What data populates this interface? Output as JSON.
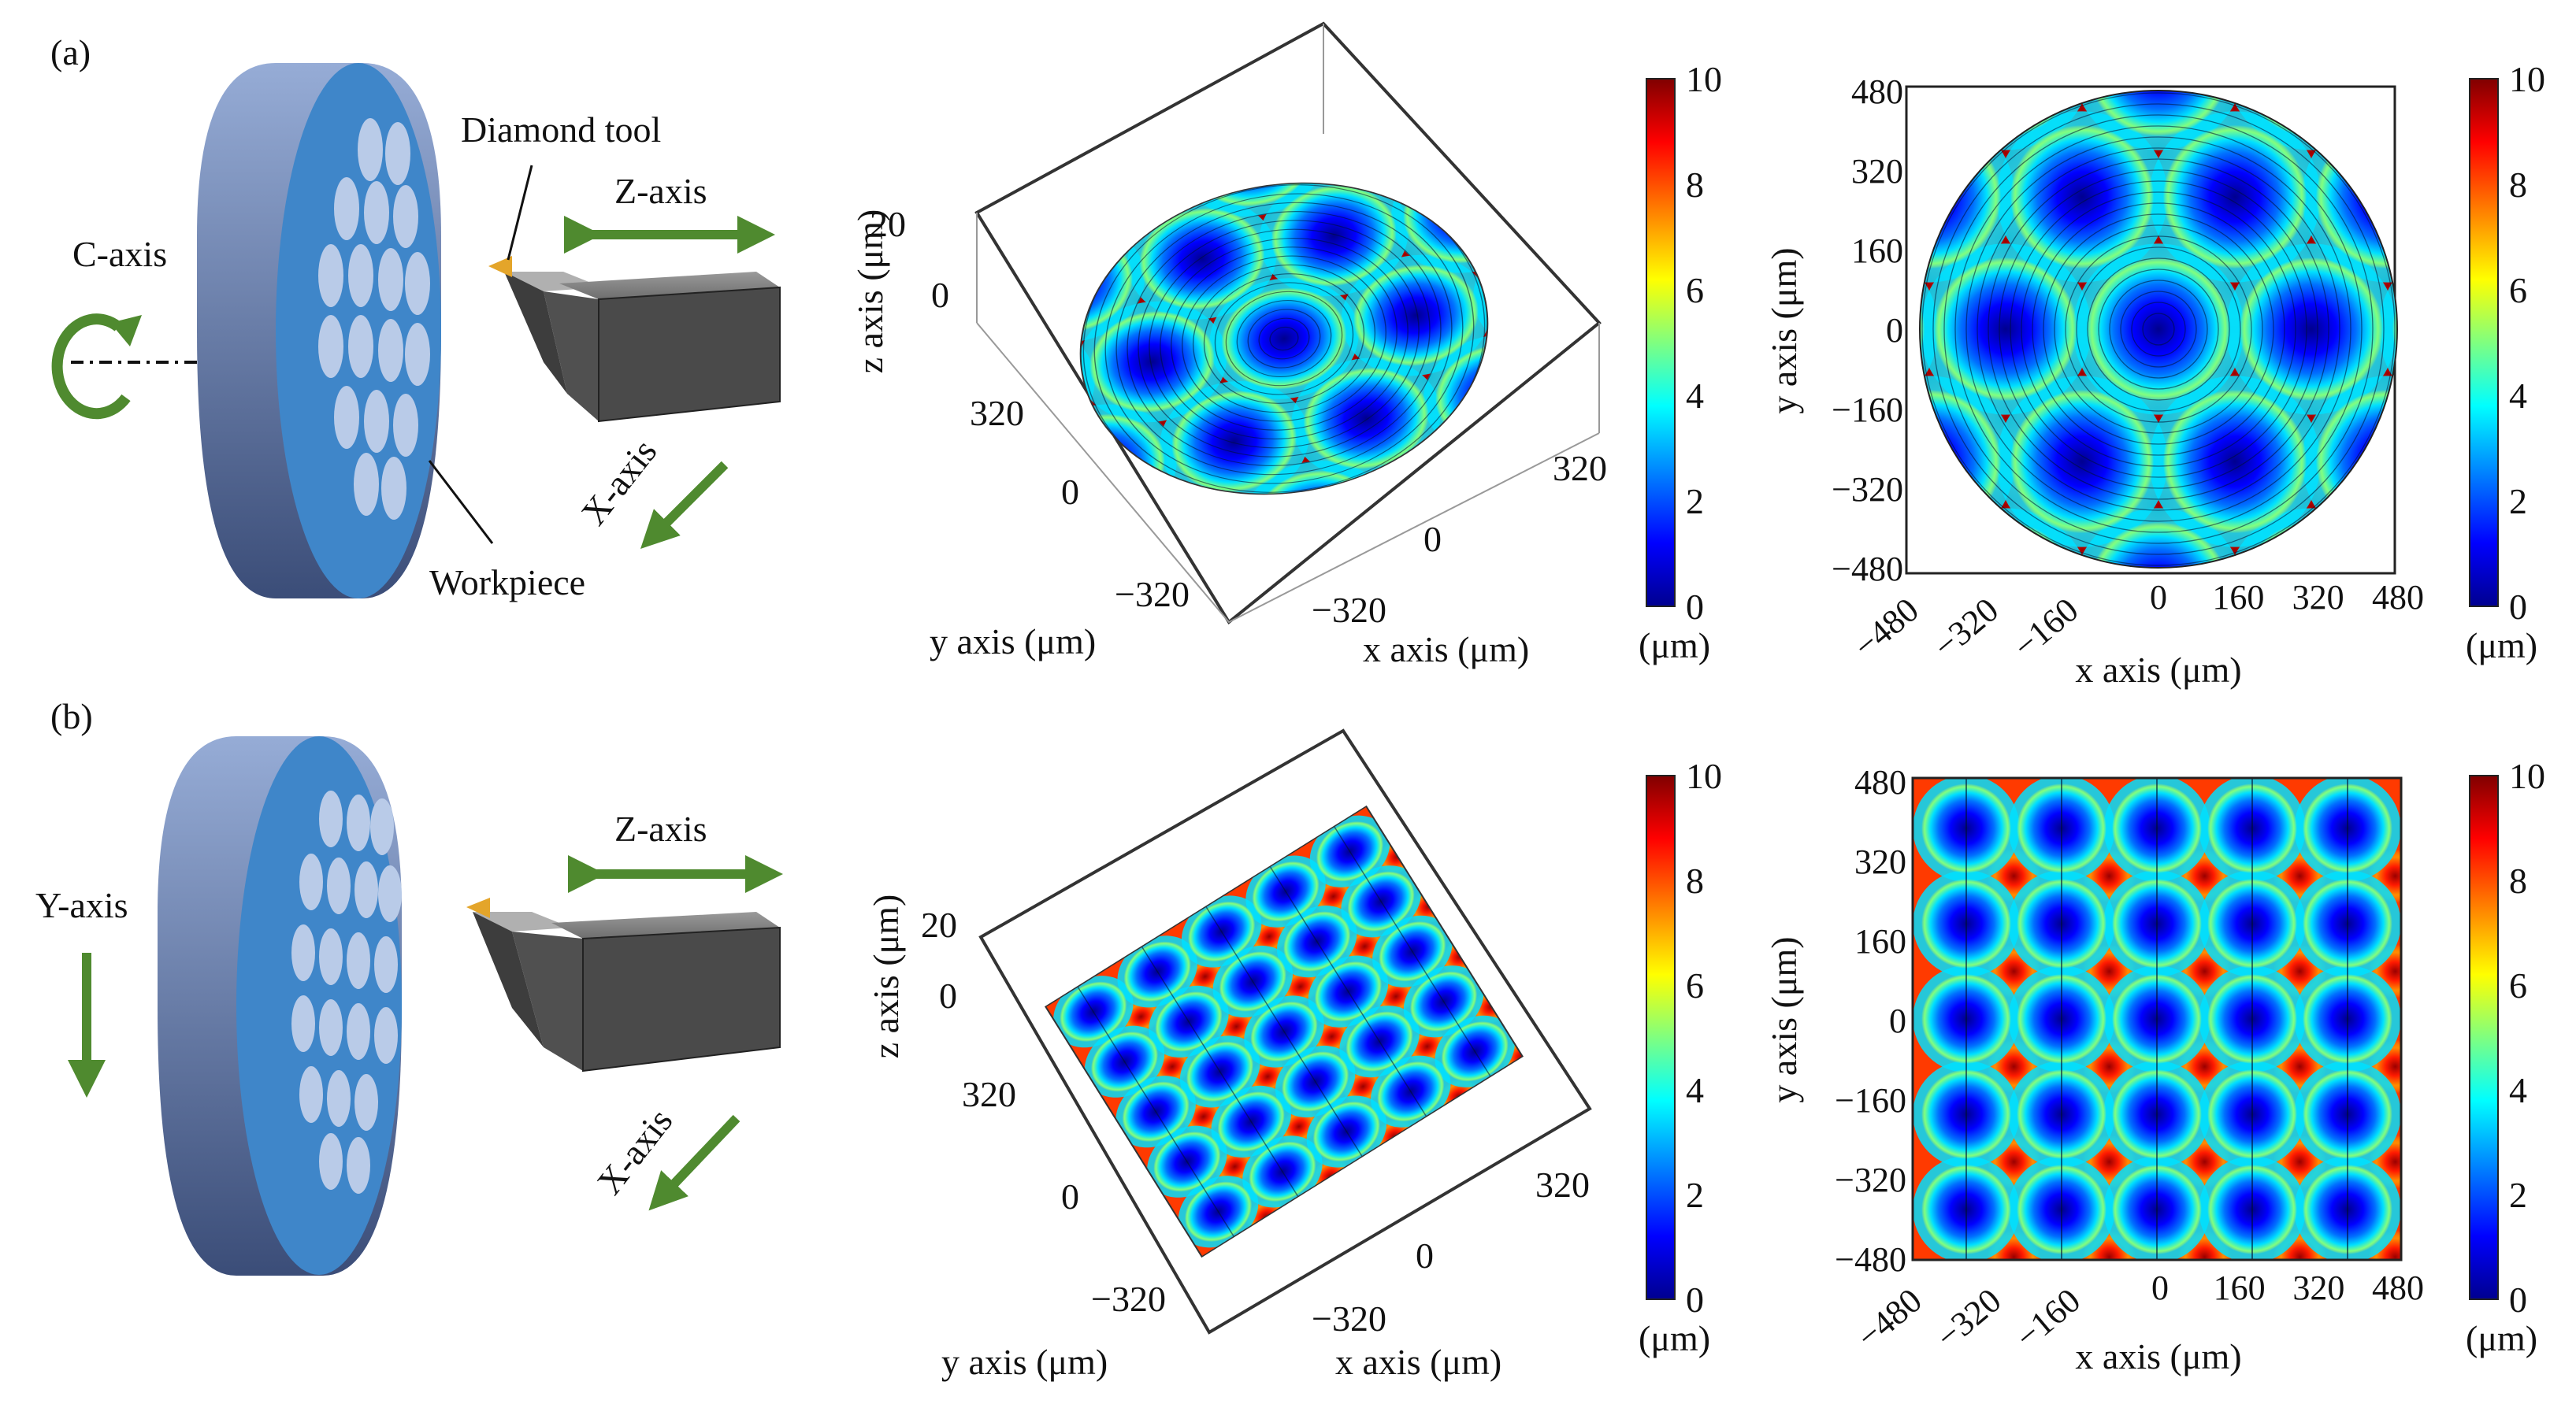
{
  "colors": {
    "arrow": "#4f8a2f",
    "disk_top": "#8fa8d4",
    "disk_bottom": "#3c4f7a",
    "disk_face": "#3f86c9",
    "lens": "#b9cbe8",
    "tool": "#555555",
    "tool_tip": "#e4a52a",
    "colormap": [
      "#00008f",
      "#0000ff",
      "#00ffff",
      "#ffff00",
      "#ff0000",
      "#800000"
    ]
  },
  "panels": [
    {
      "label": "(a)",
      "schematic": {
        "tool_label": "Diamond tool",
        "workpiece_label": "Workpiece",
        "rotation_axis_label": "C-axis",
        "z_axis_label": "Z-axis",
        "x_axis_label": "X-axis",
        "lens_pattern": "hexagonal",
        "spindle": "rotary"
      },
      "surface_3d": {
        "zlabel": "z axis (μm)",
        "ylabel": "y axis (μm)",
        "xlabel": "x axis (μm)",
        "z_ticks": [
          "20",
          "0"
        ],
        "y_ticks": [
          "320",
          "0",
          "−320"
        ],
        "x_ticks": [
          "320",
          "0",
          "−320"
        ],
        "boundary": "circle",
        "pattern": "hexagonal"
      },
      "contour_map": {
        "ylabel": "y axis (μm)",
        "xlabel": "x axis (μm)",
        "y_ticks": [
          "480",
          "320",
          "160",
          "0",
          "−160",
          "−320",
          "−480"
        ],
        "x_ticks": [
          "−480",
          "−320",
          "−160",
          "0",
          "160",
          "320",
          "480"
        ],
        "boundary": "circle",
        "pattern": "hexagonal"
      },
      "colorbars": {
        "ticks": [
          "10",
          "8",
          "6",
          "4",
          "2",
          "0"
        ],
        "unit": "(μm)"
      }
    },
    {
      "label": "(b)",
      "schematic": {
        "tool_label": "",
        "workpiece_label": "",
        "rotation_axis_label": "Y-axis",
        "z_axis_label": "Z-axis",
        "x_axis_label": "X-axis",
        "lens_pattern": "square",
        "spindle": "linear"
      },
      "surface_3d": {
        "zlabel": "z axis (μm)",
        "ylabel": "y axis (μm)",
        "xlabel": "x axis (μm)",
        "z_ticks": [
          "20",
          "0"
        ],
        "y_ticks": [
          "320",
          "0",
          "−320"
        ],
        "x_ticks": [
          "320",
          "0",
          "−320"
        ],
        "boundary": "square",
        "pattern": "square"
      },
      "contour_map": {
        "ylabel": "y axis (μm)",
        "xlabel": "x axis (μm)",
        "y_ticks": [
          "480",
          "320",
          "160",
          "0",
          "−160",
          "−320",
          "−480"
        ],
        "x_ticks": [
          "−480",
          "−320",
          "−160",
          "0",
          "160",
          "320",
          "480"
        ],
        "boundary": "square",
        "pattern": "square"
      },
      "colorbars": {
        "ticks": [
          "10",
          "8",
          "6",
          "4",
          "2",
          "0"
        ],
        "unit": "(μm)"
      }
    }
  ]
}
